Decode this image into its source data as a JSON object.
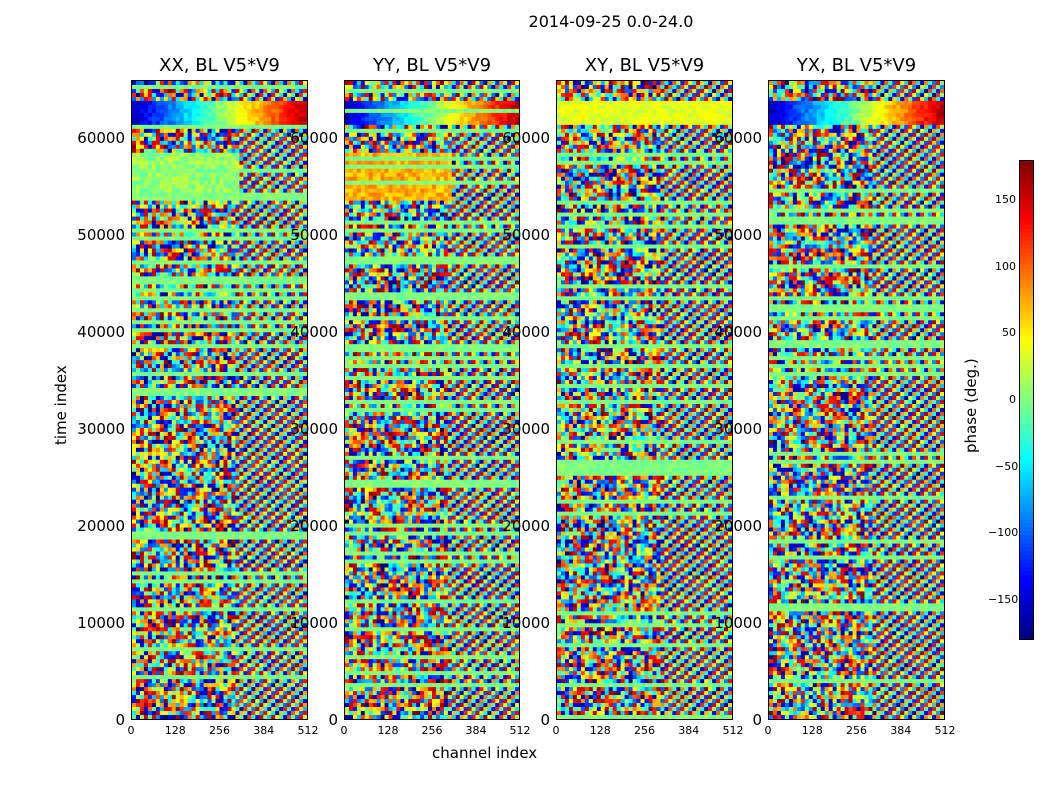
{
  "chart_data": {
    "type": "heatmap",
    "title": "2014-09-25 0.0-24.0",
    "xlabel": "channel index",
    "ylabel": "time index",
    "x_range": [
      0,
      512
    ],
    "y_range": [
      0,
      66000
    ],
    "x_ticks": [
      "0",
      "128",
      "256",
      "384",
      "512"
    ],
    "y_ticks": [
      "0",
      "10000",
      "20000",
      "30000",
      "40000",
      "50000",
      "60000"
    ],
    "colormap": "jet",
    "colorbar": {
      "label": "phase (deg.)",
      "range": [
        -180,
        180
      ],
      "ticks": [
        "150",
        "100",
        "50",
        "0",
        "−50",
        "−100",
        "−150"
      ]
    },
    "panels": [
      {
        "title": "XX, BL V5*V9"
      },
      {
        "title": "YY, BL V5*V9"
      },
      {
        "title": "XY, BL V5*V9"
      },
      {
        "title": "YX, BL V5*V9"
      }
    ]
  }
}
